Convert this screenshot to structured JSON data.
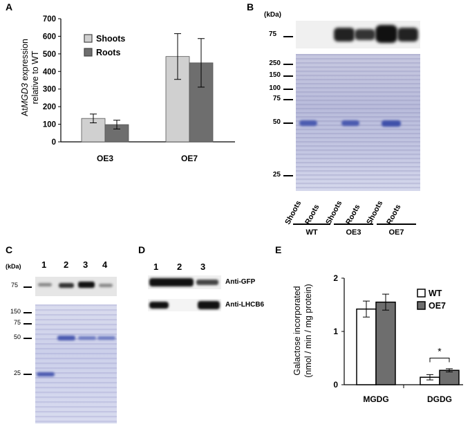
{
  "panels": {
    "a": {
      "label": "A",
      "chart_data": {
        "type": "bar",
        "categories": [
          "OE3",
          "OE7"
        ],
        "series": [
          {
            "name": "Shoots",
            "values": [
              133,
              485
            ],
            "errors": [
              25,
              130
            ],
            "color": "#d0d0d0"
          },
          {
            "name": "Roots",
            "values": [
              98,
              449
            ],
            "errors": [
              25,
              138
            ],
            "color": "#6e6e6e"
          }
        ],
        "ylabel_parts": [
          "At",
          "MGD3",
          " expression",
          "relative to WT"
        ],
        "ylim": [
          0,
          700
        ],
        "yticks": [
          0,
          100,
          200,
          300,
          400,
          500,
          600,
          700
        ],
        "legend": "top-left"
      }
    },
    "b": {
      "label": "B",
      "kda_label": "(kDa)",
      "blot_marker": "75",
      "gel_markers": [
        "250",
        "150",
        "100",
        "75",
        "50",
        "25"
      ],
      "lane_labels": [
        "Shoots",
        "Roots",
        "Shoots",
        "Roots",
        "Shoots",
        "Roots"
      ],
      "groups": [
        "WT",
        "OE3",
        "OE7"
      ]
    },
    "c": {
      "label": "C",
      "kda_label": "(kDa)",
      "lanes": [
        "1",
        "2",
        "3",
        "4"
      ],
      "blot_marker": "75",
      "gel_markers": [
        "150",
        "75",
        "50",
        "25"
      ]
    },
    "d": {
      "label": "D",
      "lanes": [
        "1",
        "2",
        "3"
      ],
      "blots": [
        "Anti-GFP",
        "Anti-LHCB6"
      ]
    },
    "e": {
      "label": "E",
      "chart_data": {
        "type": "bar",
        "categories": [
          "MGDG",
          "DGDG"
        ],
        "series": [
          {
            "name": "WT",
            "values": [
              1.42,
              0.14
            ],
            "errors": [
              0.15,
              0.05
            ],
            "color": "#ffffff"
          },
          {
            "name": "OE7",
            "values": [
              1.55,
              0.27
            ],
            "errors": [
              0.15,
              0.03
            ],
            "color": "#6e6e6e"
          }
        ],
        "ylabel_lines": [
          "Galactose incorporated",
          "(nmol / min / mg protein)"
        ],
        "ylim": [
          0,
          2
        ],
        "yticks": [
          0,
          1,
          2
        ],
        "significance": "*",
        "legend": "top-right"
      }
    }
  }
}
